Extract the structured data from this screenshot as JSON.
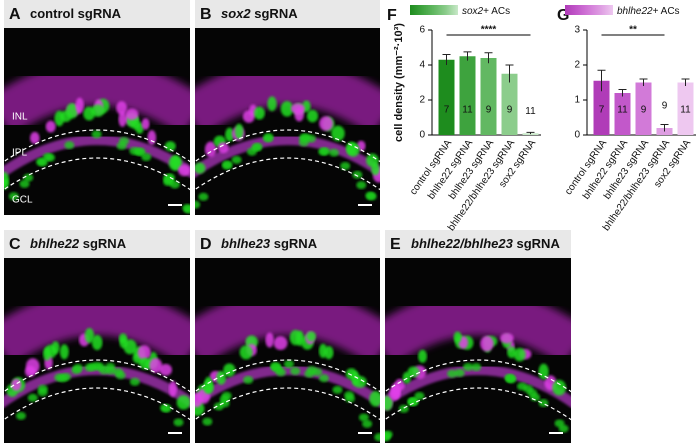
{
  "panels": [
    {
      "letter": "A",
      "text": "control sgRNA"
    },
    {
      "letter": "B",
      "gene": "sox2",
      "text": "sgRNA"
    },
    {
      "letter": "C",
      "gene": "bhlhe22",
      "text": "sgRNA"
    },
    {
      "letter": "D",
      "gene": "bhlhe23",
      "text": "sgRNA"
    },
    {
      "letter": "E",
      "gene": "bhlhe22/bhlhe23",
      "text": "sgRNA"
    }
  ],
  "layer_labels": [
    "INL",
    "IPL",
    "GCL"
  ],
  "chart_data": [
    {
      "type": "bar",
      "letter": "F",
      "legend": {
        "gene": "sox2",
        "text": "+ ACs"
      },
      "ylabel": "cell density (mm⁻²·10³)",
      "categories": [
        "control sgRNA",
        "bhlhe22 sgRNA",
        "bhlhe23 sgRNA",
        "bhlhe22/bhlhe23 sgRNA",
        "sox2 sgRNA"
      ],
      "values": [
        4.3,
        4.5,
        4.4,
        3.5,
        0.1
      ],
      "errors": [
        0.3,
        0.25,
        0.3,
        0.5,
        0.05
      ],
      "n": [
        7,
        11,
        9,
        9,
        11
      ],
      "colors": [
        "#1e8c1e",
        "#3ea33e",
        "#62b862",
        "#8ccd8c",
        "#c8e8c8"
      ],
      "ylim": [
        0,
        6
      ],
      "yticks": [
        0,
        2,
        4,
        6
      ],
      "significance": {
        "label": "****",
        "between": [
          "control sgRNA",
          "sox2 sgRNA"
        ]
      }
    },
    {
      "type": "bar",
      "letter": "G",
      "legend": {
        "gene": "bhlhe22",
        "text": "+ ACs"
      },
      "categories": [
        "control sgRNA",
        "bhlhe22 sgRNA",
        "bhlhe23 sgRNA",
        "bhlhe22/bhlhe23 sgRNA",
        "sox2 sgRNA"
      ],
      "values": [
        1.55,
        1.2,
        1.5,
        0.2,
        1.5
      ],
      "errors": [
        0.3,
        0.1,
        0.1,
        0.1,
        0.1
      ],
      "n": [
        7,
        11,
        9,
        9,
        11
      ],
      "colors": [
        "#b03cb8",
        "#c258ca",
        "#d27ad8",
        "#de9ee2",
        "#eec8f0"
      ],
      "ylim": [
        0,
        3
      ],
      "yticks": [
        0,
        1,
        2,
        3
      ],
      "significance": {
        "label": "**",
        "between": [
          "control sgRNA",
          "bhlhe22/bhlhe23 sgRNA"
        ]
      }
    }
  ]
}
